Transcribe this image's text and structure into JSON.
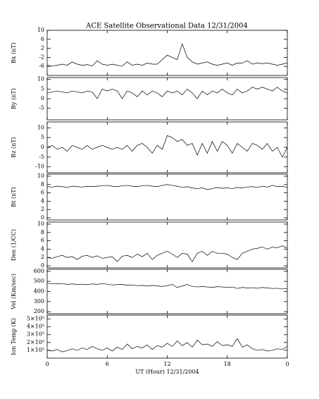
{
  "chart_data": [
    {
      "type": "line",
      "title": "ACE Satellite Observational Data   12/31/2004",
      "ylabel": "Bx (nT)",
      "color": "#000000",
      "x": [
        0,
        0.5,
        1,
        1.5,
        2,
        2.5,
        3,
        3.5,
        4,
        4.5,
        5,
        5.5,
        6,
        6.5,
        7,
        7.5,
        8,
        8.5,
        9,
        9.5,
        10,
        10.5,
        11,
        11.5,
        12,
        12.5,
        13,
        13.5,
        14,
        14.5,
        15,
        15.5,
        16,
        16.5,
        17,
        17.5,
        18,
        18.5,
        19,
        19.5,
        20,
        20.5,
        21,
        21.5,
        22,
        22.5,
        23,
        23.5,
        24
      ],
      "values": [
        -5.5,
        -5.8,
        -5.5,
        -5,
        -5.5,
        -4,
        -5,
        -5.5,
        -5.2,
        -5.8,
        -3.5,
        -5,
        -5.5,
        -5,
        -5.5,
        -5.8,
        -4,
        -5.5,
        -5,
        -5.5,
        -4.5,
        -5,
        -5,
        -3,
        -1,
        -2,
        -3,
        4,
        -2,
        -4,
        -5,
        -4.5,
        -4,
        -5,
        -5.5,
        -5,
        -4.5,
        -5.5,
        -4.5,
        -4.5,
        -3.5,
        -5,
        -4.5,
        -4.8,
        -4.5,
        -5,
        -5.5,
        -5,
        -4.5
      ],
      "xlim": [
        0,
        24
      ],
      "ylim": [
        -10,
        10
      ],
      "yticks": [
        10,
        6,
        2,
        -2,
        -6
      ]
    },
    {
      "type": "line",
      "ylabel": "By (nT)",
      "color": "#000000",
      "x": [
        0,
        0.5,
        1,
        1.5,
        2,
        2.5,
        3,
        3.5,
        4,
        4.5,
        5,
        5.5,
        6,
        6.5,
        7,
        7.5,
        8,
        8.5,
        9,
        9.5,
        10,
        10.5,
        11,
        11.5,
        12,
        12.5,
        13,
        13.5,
        14,
        14.5,
        15,
        15.5,
        16,
        16.5,
        17,
        17.5,
        18,
        18.5,
        19,
        19.5,
        20,
        20.5,
        21,
        21.5,
        22,
        22.5,
        23,
        23.5,
        24
      ],
      "values": [
        3,
        3.5,
        4,
        3.5,
        3,
        4,
        3.5,
        3,
        4,
        3.5,
        0,
        5,
        4,
        5,
        4,
        0,
        4,
        3,
        1,
        4,
        2,
        4,
        3,
        1,
        4,
        3,
        4,
        2,
        5,
        3,
        0,
        4,
        2,
        4,
        3,
        5,
        3,
        2,
        5,
        3,
        4,
        6,
        5,
        6,
        5,
        4,
        6,
        4,
        3
      ],
      "xlim": [
        0,
        24
      ],
      "ylim": [
        -11,
        11
      ],
      "yticks": [
        10,
        5,
        0,
        -5
      ]
    },
    {
      "type": "line",
      "ylabel": "Bz (nT)",
      "color": "#000000",
      "x": [
        0,
        0.5,
        1,
        1.5,
        2,
        2.5,
        3,
        3.5,
        4,
        4.5,
        5,
        5.5,
        6,
        6.5,
        7,
        7.5,
        8,
        8.5,
        9,
        9.5,
        10,
        10.5,
        11,
        11.5,
        12,
        12.5,
        13,
        13.5,
        14,
        14.5,
        15,
        15.5,
        16,
        16.5,
        17,
        17.5,
        18,
        18.5,
        19,
        19.5,
        20,
        20.5,
        21,
        21.5,
        22,
        22.5,
        23,
        23.5,
        24
      ],
      "values": [
        0,
        1,
        -1,
        0,
        -2,
        1,
        0,
        -1,
        1,
        -1,
        0,
        1,
        0,
        -1,
        0,
        -1,
        1,
        -2,
        1,
        2,
        0,
        -3,
        1,
        -1,
        6,
        5,
        3,
        4,
        1,
        2,
        -4,
        2,
        -3,
        3,
        -2,
        3,
        1,
        -3,
        2,
        0,
        -2,
        2,
        1,
        -1,
        2,
        -2,
        0,
        -5,
        0
      ],
      "xlim": [
        0,
        24
      ],
      "ylim": [
        -13,
        13
      ],
      "yticks": [
        10,
        5,
        0,
        -5,
        -10
      ]
    },
    {
      "type": "line",
      "ylabel": "Bt (nT)",
      "color": "#000000",
      "x": [
        0,
        0.5,
        1,
        1.5,
        2,
        2.5,
        3,
        3.5,
        4,
        4.5,
        5,
        5.5,
        6,
        6.5,
        7,
        7.5,
        8,
        8.5,
        9,
        9.5,
        10,
        10.5,
        11,
        11.5,
        12,
        12.5,
        13,
        13.5,
        14,
        14.5,
        15,
        15.5,
        16,
        16.5,
        17,
        17.5,
        18,
        18.5,
        19,
        19.5,
        20,
        20.5,
        21,
        21.5,
        22,
        22.5,
        23,
        23.5,
        24
      ],
      "values": [
        7.5,
        7.4,
        7.6,
        7.5,
        7.3,
        7.6,
        7.5,
        7.4,
        7.6,
        7.5,
        7.6,
        7.7,
        7.8,
        7.6,
        7.5,
        7.7,
        7.8,
        7.6,
        7.5,
        7.7,
        7.8,
        7.6,
        7.5,
        7.8,
        8,
        7.8,
        7.6,
        7.3,
        7.5,
        7.2,
        7,
        7.2,
        6.8,
        7,
        7.3,
        7.1,
        7.2,
        7,
        7.3,
        7.2,
        7.4,
        7.5,
        7.3,
        7.6,
        7.4,
        7.8,
        7.5,
        7.6,
        7.3
      ],
      "xlim": [
        0,
        24
      ],
      "ylim": [
        -0.5,
        10.5
      ],
      "yticks": [
        10,
        8,
        6,
        4,
        2,
        0
      ]
    },
    {
      "type": "line",
      "ylabel": "Den (1/CC)",
      "color": "#000000",
      "x": [
        0,
        0.5,
        1,
        1.5,
        2,
        2.5,
        3,
        3.5,
        4,
        4.5,
        5,
        5.5,
        6,
        6.5,
        7,
        7.5,
        8,
        8.5,
        9,
        9.5,
        10,
        10.5,
        11,
        11.5,
        12,
        12.5,
        13,
        13.5,
        14,
        14.5,
        15,
        15.5,
        16,
        16.5,
        17,
        17.5,
        18,
        18.5,
        19,
        19.5,
        20,
        20.5,
        21,
        21.5,
        22,
        22.5,
        23,
        23.5,
        24
      ],
      "values": [
        2,
        1.8,
        2.2,
        2.5,
        2,
        2.2,
        1.5,
        2.3,
        2.5,
        2,
        2.4,
        1.8,
        2,
        2.2,
        1,
        2.3,
        2.5,
        2,
        2.8,
        2.2,
        3,
        1.5,
        2.5,
        3,
        3.5,
        2.8,
        2,
        3,
        2.8,
        1,
        3,
        3.5,
        2.5,
        3.5,
        3,
        3,
        2.8,
        2,
        1.5,
        3,
        3.5,
        4,
        4.2,
        4.5,
        4,
        4.5,
        4.3,
        4.8,
        4.2
      ],
      "xlim": [
        0,
        24
      ],
      "ylim": [
        -0.5,
        10.5
      ],
      "yticks": [
        10,
        8,
        6,
        4,
        2,
        0
      ]
    },
    {
      "type": "line",
      "ylabel": "Vel (Km/sec)",
      "color": "#000000",
      "x": [
        0,
        0.5,
        1,
        1.5,
        2,
        2.5,
        3,
        3.5,
        4,
        4.5,
        5,
        5.5,
        6,
        6.5,
        7,
        7.5,
        8,
        8.5,
        9,
        9.5,
        10,
        10.5,
        11,
        11.5,
        12,
        12.5,
        13,
        13.5,
        14,
        14.5,
        15,
        15.5,
        16,
        16.5,
        17,
        17.5,
        18,
        18.5,
        19,
        19.5,
        20,
        20.5,
        21,
        21.5,
        22,
        22.5,
        23,
        23.5,
        24
      ],
      "values": [
        480,
        478,
        475,
        480,
        470,
        475,
        470,
        472,
        468,
        475,
        470,
        478,
        472,
        465,
        468,
        470,
        462,
        465,
        458,
        460,
        455,
        460,
        455,
        450,
        458,
        470,
        440,
        455,
        470,
        450,
        445,
        450,
        445,
        440,
        448,
        445,
        440,
        445,
        430,
        440,
        435,
        438,
        432,
        440,
        435,
        430,
        432,
        425,
        430
      ],
      "xlim": [
        0,
        24
      ],
      "ylim": [
        180,
        620
      ],
      "yticks": [
        600,
        500,
        400,
        300,
        200
      ]
    },
    {
      "type": "line",
      "ylabel": "Ion Temp (K)",
      "xlabel": "UT (Hour)  12/31/2004",
      "color": "#000000",
      "x": [
        0,
        0.5,
        1,
        1.5,
        2,
        2.5,
        3,
        3.5,
        4,
        4.5,
        5,
        5.5,
        6,
        6.5,
        7,
        7.5,
        8,
        8.5,
        9,
        9.5,
        10,
        10.5,
        11,
        11.5,
        12,
        12.5,
        13,
        13.5,
        14,
        14.5,
        15,
        15.5,
        16,
        16.5,
        17,
        17.5,
        18,
        18.5,
        19,
        19.5,
        20,
        20.5,
        21,
        21.5,
        22,
        22.5,
        23,
        23.5,
        24
      ],
      "values": [
        100000,
        90000,
        110000,
        80000,
        95000,
        120000,
        100000,
        130000,
        110000,
        150000,
        120000,
        100000,
        130000,
        90000,
        140000,
        110000,
        180000,
        120000,
        150000,
        130000,
        170000,
        110000,
        160000,
        140000,
        190000,
        150000,
        220000,
        160000,
        200000,
        140000,
        230000,
        170000,
        180000,
        150000,
        210000,
        160000,
        170000,
        150000,
        250000,
        140000,
        170000,
        120000,
        100000,
        110000,
        90000,
        100000,
        120000,
        110000,
        150000
      ],
      "xlim": [
        0,
        24
      ],
      "ylim": [
        0,
        550000
      ],
      "yticks": [
        {
          "value": 500000,
          "label": "5×10⁵"
        },
        {
          "value": 400000,
          "label": "4×10⁵"
        },
        {
          "value": 300000,
          "label": "3×10⁵"
        },
        {
          "value": 200000,
          "label": "2×10⁵"
        },
        {
          "value": 100000,
          "label": "1×10⁵"
        }
      ],
      "xticks": [
        0,
        6,
        12,
        18,
        {
          "value": 24,
          "label": "0"
        }
      ]
    }
  ]
}
